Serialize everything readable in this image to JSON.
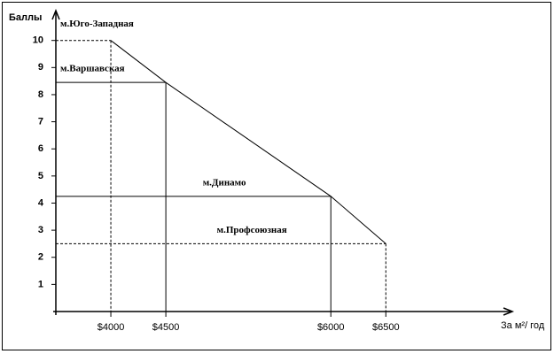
{
  "chart_data": {
    "type": "line",
    "y_label": "Баллы",
    "x_label": "За м²/ год",
    "x": [
      4000,
      4500,
      6000,
      6500
    ],
    "values": [
      10,
      8.45,
      4.25,
      2.5
    ],
    "point_labels": [
      "м.Юго-Западная",
      "м.Варшавская",
      "м.Динамо",
      "м.Профсоюзная"
    ],
    "dashed": [
      true,
      false,
      false,
      true
    ],
    "color": "#000000",
    "xlim": [
      3500,
      7650
    ],
    "ylim": [
      0,
      11.1
    ],
    "xticks": [
      {
        "value": 4000,
        "label": "$4000"
      },
      {
        "value": 4500,
        "label": "$4500"
      },
      {
        "value": 6000,
        "label": "$6000"
      },
      {
        "value": 6500,
        "label": "$6500"
      }
    ],
    "yticks": [
      1,
      2,
      3,
      4,
      5,
      6,
      7,
      8,
      9,
      10
    ]
  }
}
